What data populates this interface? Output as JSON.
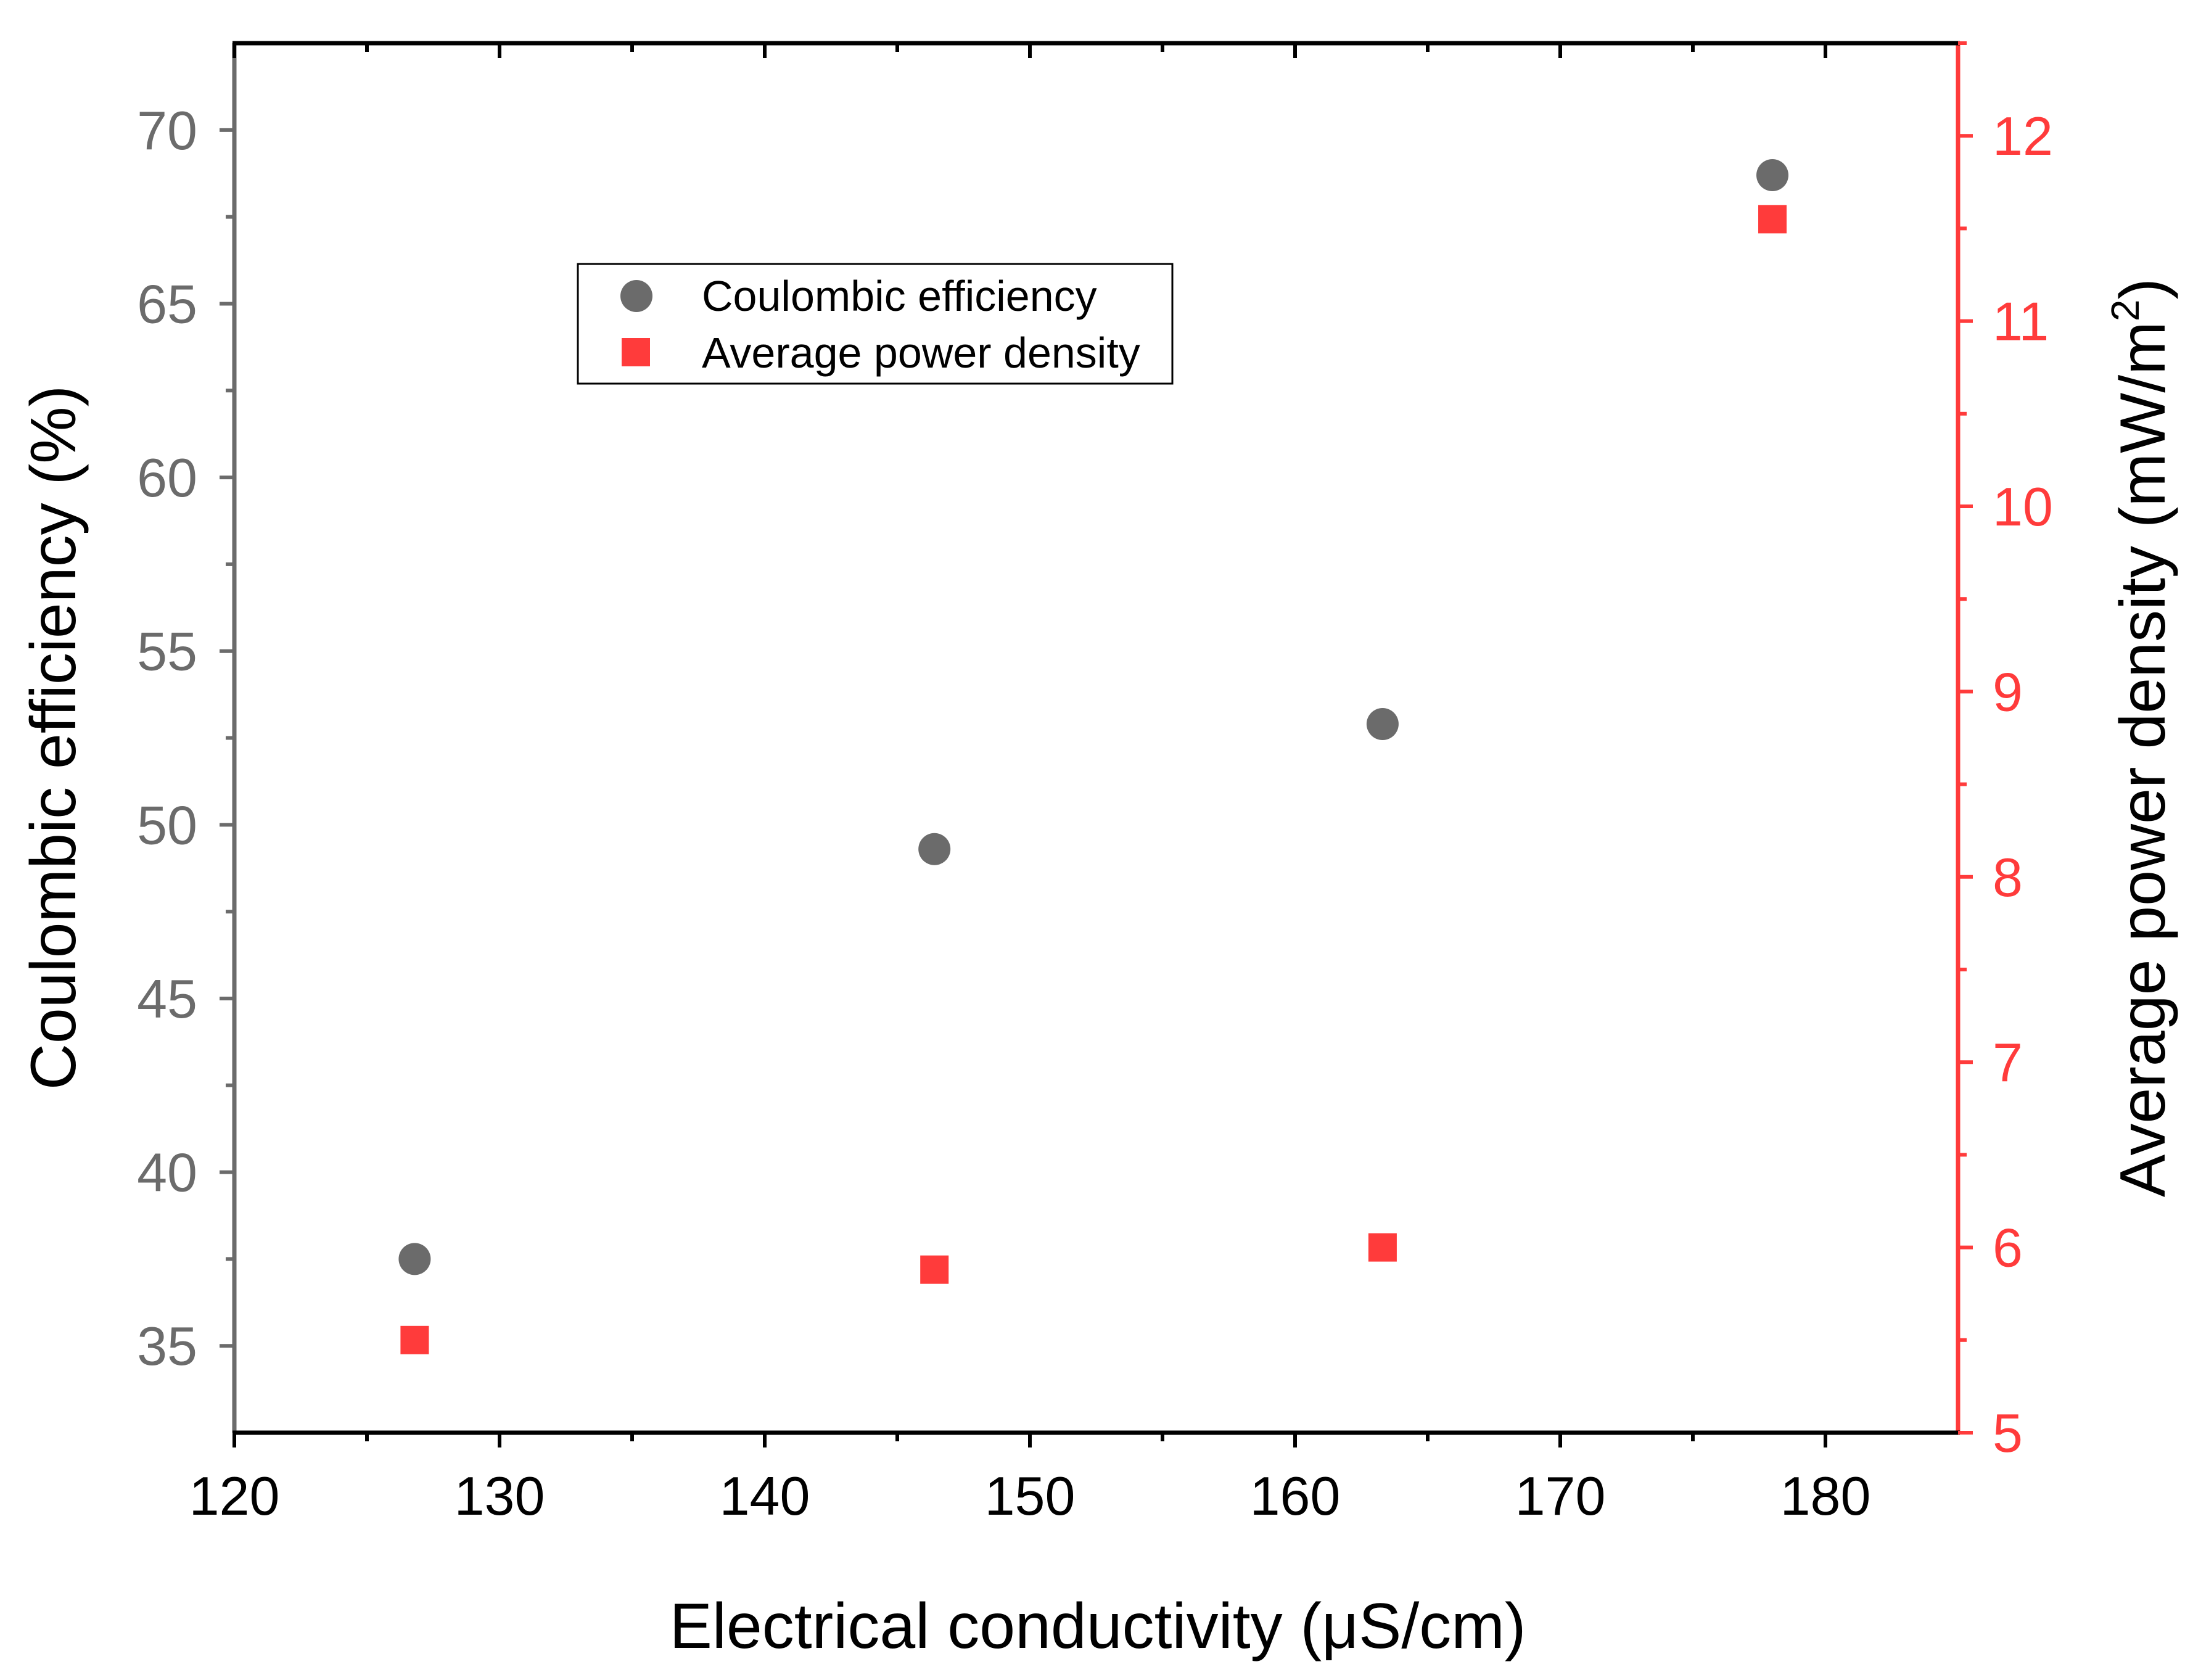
{
  "chart_data": {
    "type": "scatter",
    "title": "",
    "xlabel": "Electrical conductivity (μS/cm)",
    "ylabel_left": "Coulombic efficiency (%)",
    "ylabel_right_main": "Average power density (mW/m",
    "ylabel_right_sup": "2",
    "ylabel_right_close": ")",
    "xlim": [
      120,
      185
    ],
    "ylim_left": [
      32.5,
      72.5
    ],
    "ylim_right": [
      5,
      12.5
    ],
    "x_ticks": [
      "120",
      "130",
      "140",
      "150",
      "160",
      "170",
      "180"
    ],
    "y_left_ticks": [
      "35",
      "40",
      "45",
      "50",
      "55",
      "60",
      "65",
      "70"
    ],
    "y_right_ticks": [
      "5",
      "6",
      "7",
      "8",
      "9",
      "10",
      "11",
      "12"
    ],
    "legend_position": "upper-left",
    "series": [
      {
        "name": "Coulombic efficiency",
        "axis": "left",
        "marker": "circle",
        "color": "#6b6b6b",
        "x": [
          126.8,
          146.4,
          163.3,
          178.0
        ],
        "y": [
          37.5,
          49.3,
          52.9,
          68.7
        ]
      },
      {
        "name": "Average power density",
        "axis": "right",
        "marker": "square",
        "color": "#ff3b3b",
        "x": [
          126.8,
          146.4,
          163.3,
          178.0
        ],
        "y": [
          5.5,
          5.88,
          6.0,
          11.55
        ]
      }
    ]
  }
}
